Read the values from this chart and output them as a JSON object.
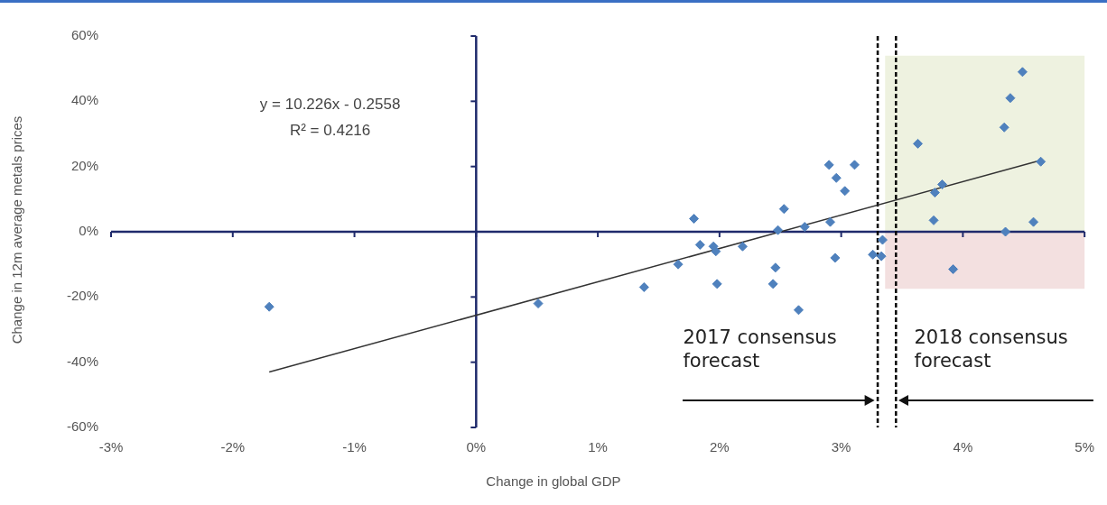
{
  "chart_data": {
    "type": "scatter",
    "xlabel": "Change in global GDP",
    "ylabel": "Change in 12m average metals prices",
    "xlim": [
      -3,
      5
    ],
    "xticks": [
      {
        "value": -3,
        "label": "-3%"
      },
      {
        "value": -2,
        "label": "-2%"
      },
      {
        "value": -1,
        "label": "-1%"
      },
      {
        "value": 0,
        "label": "0%"
      },
      {
        "value": 1,
        "label": "1%"
      },
      {
        "value": 2,
        "label": "2%"
      },
      {
        "value": 3,
        "label": "3%"
      },
      {
        "value": 4,
        "label": "4%"
      },
      {
        "value": 5,
        "label": "5%"
      }
    ],
    "ylim": [
      -60,
      60
    ],
    "yticks": [
      {
        "value": -60,
        "label": "-60%"
      },
      {
        "value": -40,
        "label": "-40%"
      },
      {
        "value": -20,
        "label": "-20%"
      },
      {
        "value": 0,
        "label": "0%"
      },
      {
        "value": 20,
        "label": "20%"
      },
      {
        "value": 40,
        "label": "40%"
      },
      {
        "value": 60,
        "label": "60%"
      }
    ],
    "legend": false,
    "marker": "diamond",
    "series": [
      {
        "color": "#4f81bd",
        "x": [
          -1.7,
          0.51,
          1.38,
          1.66,
          1.79,
          1.84,
          1.95,
          1.97,
          1.98,
          2.19,
          2.44,
          2.46,
          2.48,
          2.53,
          2.65,
          2.7,
          2.9,
          2.91,
          2.95,
          2.96,
          3.03,
          3.11,
          3.26,
          3.33,
          3.34,
          3.63,
          3.76,
          3.77,
          3.83,
          3.92,
          4.34,
          4.35,
          4.39,
          4.49,
          4.58,
          4.64
        ],
        "values": [
          -23,
          -22,
          -17,
          -10,
          4,
          -4,
          -4.5,
          -6,
          -16,
          -4.5,
          -16,
          -11,
          0.5,
          7,
          -24,
          1.5,
          20.5,
          3,
          -8,
          16.5,
          12.5,
          20.5,
          -7,
          -7.5,
          -2.5,
          27,
          3.5,
          12,
          14.5,
          -11.5,
          32,
          0,
          41,
          49,
          3,
          21.5
        ]
      },
      {
        "type": "line",
        "marker": "none",
        "color": "#333333",
        "x": [
          -1.7,
          4.64
        ],
        "values": [
          -43,
          21.9
        ]
      }
    ],
    "ref_lines": [
      {
        "axis": "x",
        "value": 3.3,
        "line_style": "dashed",
        "color": "#000000"
      },
      {
        "axis": "x",
        "value": 3.45,
        "line_style": "dashed",
        "color": "#000000"
      }
    ],
    "bands": [
      {
        "axis": "y",
        "from": 0,
        "to": 54,
        "color": "#eef2e0"
      },
      {
        "axis": "y",
        "from": -17.5,
        "to": 0,
        "color": "#f3e0e0"
      }
    ],
    "annotations": [
      "y = 10.226x - 0.2558",
      "R² = 0.4216",
      "2017 consensus forecast",
      "2018 consensus forecast"
    ]
  }
}
